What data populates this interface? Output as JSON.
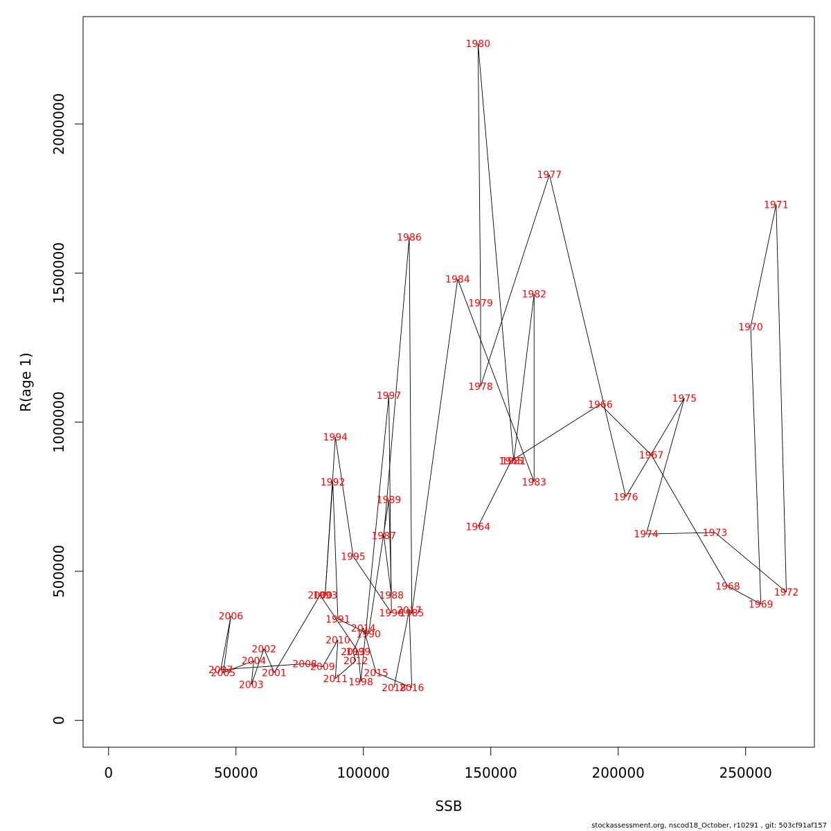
{
  "chart_data": {
    "type": "line",
    "xlabel": "SSB",
    "ylabel": "R(age 1)",
    "xlim": [
      -10000,
      277000
    ],
    "ylim": [
      -90000,
      2360000
    ],
    "x_ticks": [
      0,
      50000,
      100000,
      150000,
      200000,
      250000
    ],
    "y_ticks": [
      0,
      500000,
      1000000,
      1500000,
      2000000
    ],
    "x_tick_labels": [
      "0",
      "50000",
      "100000",
      "150000",
      "200000",
      "250000"
    ],
    "y_tick_labels": [
      "0",
      "500000",
      "1000000",
      "1500000",
      "2000000"
    ],
    "grid": false,
    "line_color": "#000000",
    "label_color": "#ff0000",
    "points": [
      {
        "year": "1964",
        "x": 145000,
        "y": 650000
      },
      {
        "year": "1965",
        "x": 158000,
        "y": 870000
      },
      {
        "year": "1966",
        "x": 193000,
        "y": 1060000
      },
      {
        "year": "1967",
        "x": 213000,
        "y": 890000
      },
      {
        "year": "1968",
        "x": 243000,
        "y": 450000
      },
      {
        "year": "1969",
        "x": 256000,
        "y": 390000
      },
      {
        "year": "1970",
        "x": 252000,
        "y": 1320000
      },
      {
        "year": "1971",
        "x": 262000,
        "y": 1730000
      },
      {
        "year": "1972",
        "x": 266000,
        "y": 430000
      },
      {
        "year": "1973",
        "x": 238000,
        "y": 630000
      },
      {
        "year": "1974",
        "x": 211000,
        "y": 625000
      },
      {
        "year": "1975",
        "x": 226000,
        "y": 1080000
      },
      {
        "year": "1976",
        "x": 203000,
        "y": 750000
      },
      {
        "year": "1977",
        "x": 173000,
        "y": 1830000
      },
      {
        "year": "1978",
        "x": 146000,
        "y": 1120000
      },
      {
        "year": "1979",
        "x": 146000,
        "y": 1400000
      },
      {
        "year": "1980",
        "x": 145000,
        "y": 2270000
      },
      {
        "year": "1981",
        "x": 159000,
        "y": 870000
      },
      {
        "year": "1982",
        "x": 167000,
        "y": 1430000
      },
      {
        "year": "1983",
        "x": 167000,
        "y": 800000
      },
      {
        "year": "1984",
        "x": 137000,
        "y": 1480000
      },
      {
        "year": "1985",
        "x": 119000,
        "y": 360000
      },
      {
        "year": "1986",
        "x": 118000,
        "y": 1620000
      },
      {
        "year": "1987",
        "x": 108000,
        "y": 620000
      },
      {
        "year": "1988",
        "x": 111000,
        "y": 420000
      },
      {
        "year": "1989",
        "x": 110000,
        "y": 740000
      },
      {
        "year": "1990",
        "x": 102000,
        "y": 290000
      },
      {
        "year": "1991",
        "x": 90000,
        "y": 340000
      },
      {
        "year": "1992",
        "x": 88000,
        "y": 800000
      },
      {
        "year": "1993",
        "x": 85000,
        "y": 420000
      },
      {
        "year": "1994",
        "x": 89000,
        "y": 950000
      },
      {
        "year": "1995",
        "x": 96000,
        "y": 550000
      },
      {
        "year": "1996",
        "x": 111000,
        "y": 360000
      },
      {
        "year": "1997",
        "x": 110000,
        "y": 1090000
      },
      {
        "year": "1998",
        "x": 99000,
        "y": 130000
      },
      {
        "year": "1999",
        "x": 98000,
        "y": 230000
      },
      {
        "year": "2000",
        "x": 83000,
        "y": 420000
      },
      {
        "year": "2001",
        "x": 65000,
        "y": 160000
      },
      {
        "year": "2002",
        "x": 61000,
        "y": 240000
      },
      {
        "year": "2003",
        "x": 56000,
        "y": 120000
      },
      {
        "year": "2004",
        "x": 57000,
        "y": 200000
      },
      {
        "year": "2005",
        "x": 45000,
        "y": 160000
      },
      {
        "year": "2006",
        "x": 48000,
        "y": 350000
      },
      {
        "year": "2007",
        "x": 44000,
        "y": 170000
      },
      {
        "year": "2008",
        "x": 77000,
        "y": 190000
      },
      {
        "year": "2009",
        "x": 84000,
        "y": 180000
      },
      {
        "year": "2010",
        "x": 90000,
        "y": 270000
      },
      {
        "year": "2011",
        "x": 89000,
        "y": 140000
      },
      {
        "year": "2012",
        "x": 97000,
        "y": 200000
      },
      {
        "year": "2013",
        "x": 96000,
        "y": 230000
      },
      {
        "year": "2014",
        "x": 100000,
        "y": 310000
      },
      {
        "year": "2015",
        "x": 105000,
        "y": 160000
      },
      {
        "year": "2016",
        "x": 119000,
        "y": 110000
      },
      {
        "year": "2017",
        "x": 118000,
        "y": 370000
      },
      {
        "year": "2018",
        "x": 112000,
        "y": 110000
      }
    ]
  },
  "footer": {
    "text": "stockassessment.org, nscod18_October, r10291 , git: 503cf91af157"
  }
}
